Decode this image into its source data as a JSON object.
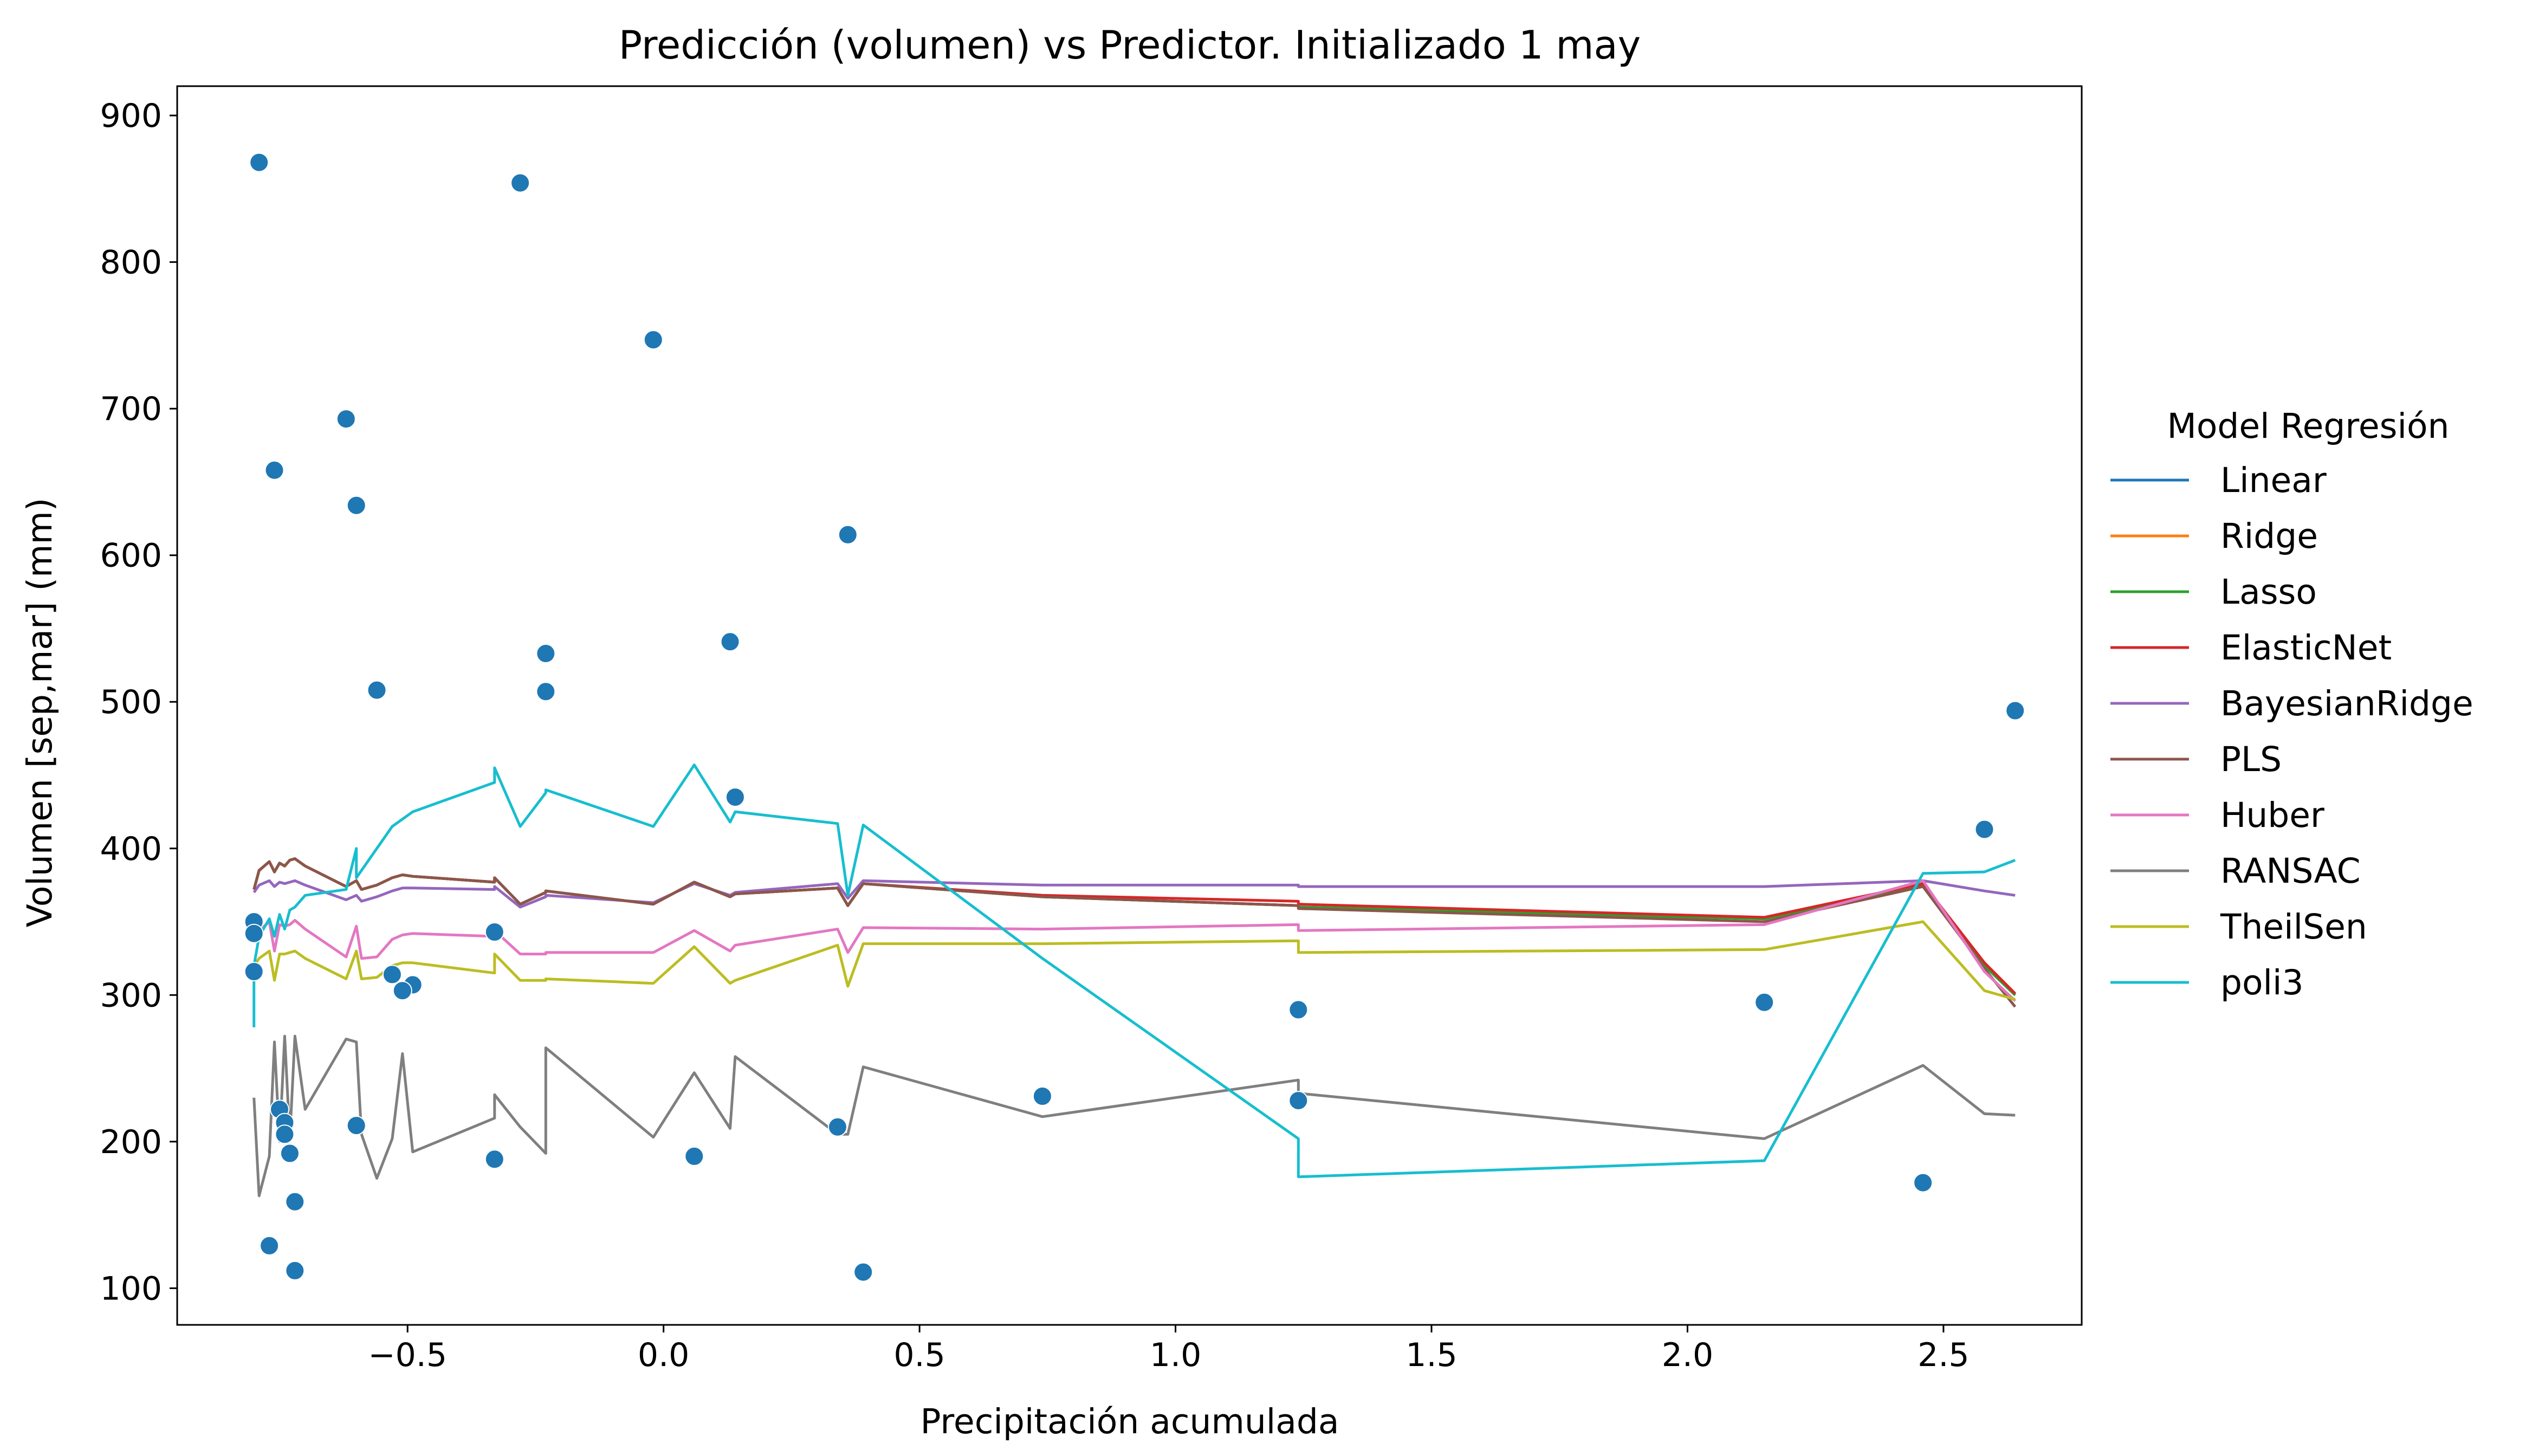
{
  "chart_data": {
    "type": "line",
    "title": "Predicción (volumen) vs Predictor. Initializado 1 may",
    "xlabel": "Precipitación acumulada",
    "ylabel": "Volumen  [sep,mar]  (mm)",
    "xlim": [
      -0.95,
      2.77
    ],
    "ylim": [
      75,
      920
    ],
    "xticks": [
      -0.5,
      0.0,
      0.5,
      1.0,
      1.5,
      2.0,
      2.5
    ],
    "xtick_labels": [
      "−0.5",
      "0.0",
      "0.5",
      "1.0",
      "1.5",
      "2.0",
      "2.5"
    ],
    "yticks": [
      100,
      200,
      300,
      400,
      500,
      600,
      700,
      800,
      900
    ],
    "ytick_labels": [
      "100",
      "200",
      "300",
      "400",
      "500",
      "600",
      "700",
      "800",
      "900"
    ],
    "grid": false,
    "legend": {
      "title": "Model Regresión",
      "placement": "outside-right"
    },
    "observed": {
      "color": "#1f77b4",
      "points": [
        {
          "x": -0.79,
          "y": 868
        },
        {
          "x": -0.28,
          "y": 854
        },
        {
          "x": -0.02,
          "y": 747
        },
        {
          "x": -0.62,
          "y": 693
        },
        {
          "x": -0.76,
          "y": 658
        },
        {
          "x": -0.6,
          "y": 634
        },
        {
          "x": 0.36,
          "y": 614
        },
        {
          "x": 0.13,
          "y": 541
        },
        {
          "x": -0.23,
          "y": 533
        },
        {
          "x": -0.56,
          "y": 508
        },
        {
          "x": -0.23,
          "y": 507
        },
        {
          "x": 2.64,
          "y": 494
        },
        {
          "x": 0.14,
          "y": 435
        },
        {
          "x": 2.58,
          "y": 413
        },
        {
          "x": -0.8,
          "y": 350
        },
        {
          "x": -0.8,
          "y": 342
        },
        {
          "x": -0.33,
          "y": 343
        },
        {
          "x": -0.8,
          "y": 316
        },
        {
          "x": -0.53,
          "y": 314
        },
        {
          "x": -0.49,
          "y": 307
        },
        {
          "x": -0.51,
          "y": 303
        },
        {
          "x": 2.15,
          "y": 295
        },
        {
          "x": 1.24,
          "y": 290
        },
        {
          "x": 0.74,
          "y": 231
        },
        {
          "x": 1.24,
          "y": 228
        },
        {
          "x": -0.75,
          "y": 222
        },
        {
          "x": -0.74,
          "y": 213
        },
        {
          "x": -0.6,
          "y": 211
        },
        {
          "x": 0.34,
          "y": 210
        },
        {
          "x": -0.74,
          "y": 205
        },
        {
          "x": -0.73,
          "y": 192
        },
        {
          "x": 0.06,
          "y": 190
        },
        {
          "x": -0.33,
          "y": 188
        },
        {
          "x": 2.46,
          "y": 172
        },
        {
          "x": -0.72,
          "y": 159
        },
        {
          "x": -0.77,
          "y": 129
        },
        {
          "x": -0.72,
          "y": 112
        },
        {
          "x": 0.39,
          "y": 111
        }
      ]
    },
    "series": [
      {
        "name": "Linear",
        "color": "#1f77b4",
        "x": [
          -0.8,
          -0.79,
          -0.77,
          -0.76,
          -0.75,
          -0.74,
          -0.73,
          -0.72,
          -0.7,
          -0.62,
          -0.6,
          -0.59,
          -0.56,
          -0.53,
          -0.51,
          -0.49,
          -0.33,
          -0.33,
          -0.28,
          -0.23,
          -0.23,
          -0.02,
          0.06,
          0.13,
          0.14,
          0.34,
          0.36,
          0.39,
          0.74,
          1.24,
          1.24,
          2.15,
          2.46,
          2.58,
          2.64
        ],
        "y": [
          372,
          385,
          391,
          384,
          390,
          388,
          392,
          393,
          388,
          374,
          378,
          372,
          375,
          380,
          382,
          381,
          377,
          380,
          362,
          370,
          371,
          362,
          377,
          367,
          369,
          373,
          361,
          376,
          367,
          361,
          360,
          352,
          375,
          320,
          300
        ]
      },
      {
        "name": "Ridge",
        "color": "#ff7f0e",
        "x": [
          -0.8,
          -0.79,
          -0.77,
          -0.76,
          -0.75,
          -0.74,
          -0.73,
          -0.72,
          -0.7,
          -0.62,
          -0.6,
          -0.59,
          -0.56,
          -0.53,
          -0.51,
          -0.49,
          -0.33,
          -0.33,
          -0.28,
          -0.23,
          -0.23,
          -0.02,
          0.06,
          0.13,
          0.14,
          0.34,
          0.36,
          0.39,
          0.74,
          1.24,
          1.24,
          2.15,
          2.46,
          2.58,
          2.64
        ],
        "y": [
          372,
          385,
          391,
          384,
          390,
          388,
          392,
          393,
          388,
          374,
          378,
          372,
          375,
          380,
          382,
          381,
          377,
          380,
          362,
          370,
          371,
          362,
          377,
          367,
          369,
          373,
          361,
          376,
          367,
          361,
          360,
          352,
          375,
          320,
          300
        ]
      },
      {
        "name": "Lasso",
        "color": "#2ca02c",
        "x": [
          -0.8,
          -0.79,
          -0.77,
          -0.76,
          -0.75,
          -0.74,
          -0.73,
          -0.72,
          -0.7,
          -0.62,
          -0.6,
          -0.59,
          -0.56,
          -0.53,
          -0.51,
          -0.49,
          -0.33,
          -0.33,
          -0.28,
          -0.23,
          -0.23,
          -0.02,
          0.06,
          0.13,
          0.14,
          0.34,
          0.36,
          0.39,
          0.74,
          1.24,
          1.24,
          2.15,
          2.46,
          2.58,
          2.64
        ],
        "y": [
          372,
          385,
          391,
          384,
          390,
          388,
          392,
          393,
          388,
          374,
          378,
          372,
          375,
          380,
          382,
          381,
          377,
          380,
          362,
          370,
          371,
          362,
          377,
          367,
          369,
          373,
          361,
          376,
          367,
          361,
          360,
          352,
          375,
          320,
          300
        ]
      },
      {
        "name": "ElasticNet",
        "color": "#d62728",
        "x": [
          -0.8,
          -0.79,
          -0.77,
          -0.76,
          -0.75,
          -0.74,
          -0.73,
          -0.72,
          -0.7,
          -0.62,
          -0.6,
          -0.59,
          -0.56,
          -0.53,
          -0.51,
          -0.49,
          -0.33,
          -0.33,
          -0.28,
          -0.23,
          -0.23,
          -0.02,
          0.06,
          0.13,
          0.14,
          0.34,
          0.36,
          0.39,
          0.74,
          1.24,
          1.24,
          2.15,
          2.46,
          2.58,
          2.64
        ],
        "y": [
          372,
          385,
          391,
          384,
          390,
          388,
          392,
          393,
          388,
          374,
          378,
          372,
          375,
          380,
          382,
          381,
          377,
          380,
          362,
          370,
          371,
          362,
          377,
          367,
          369,
          373,
          361,
          376,
          368,
          364,
          362,
          353,
          376,
          322,
          301
        ]
      },
      {
        "name": "BayesianRidge",
        "color": "#9467bd",
        "x": [
          -0.8,
          -0.79,
          -0.77,
          -0.76,
          -0.75,
          -0.74,
          -0.73,
          -0.72,
          -0.7,
          -0.62,
          -0.6,
          -0.59,
          -0.56,
          -0.53,
          -0.51,
          -0.49,
          -0.33,
          -0.33,
          -0.28,
          -0.23,
          -0.23,
          -0.02,
          0.06,
          0.13,
          0.14,
          0.34,
          0.36,
          0.39,
          0.74,
          1.24,
          1.24,
          2.15,
          2.46,
          2.58,
          2.64
        ],
        "y": [
          370,
          375,
          378,
          374,
          377,
          376,
          377,
          378,
          375,
          365,
          368,
          364,
          367,
          371,
          373,
          373,
          372,
          374,
          360,
          367,
          368,
          363,
          376,
          368,
          370,
          376,
          366,
          378,
          375,
          375,
          374,
          374,
          378,
          371,
          368
        ]
      },
      {
        "name": "PLS",
        "color": "#8c564b",
        "x": [
          -0.8,
          -0.79,
          -0.77,
          -0.76,
          -0.75,
          -0.74,
          -0.73,
          -0.72,
          -0.7,
          -0.62,
          -0.6,
          -0.59,
          -0.56,
          -0.53,
          -0.51,
          -0.49,
          -0.33,
          -0.33,
          -0.28,
          -0.23,
          -0.23,
          -0.02,
          0.06,
          0.13,
          0.14,
          0.34,
          0.36,
          0.39,
          0.74,
          1.24,
          1.24,
          2.15,
          2.46,
          2.58,
          2.64
        ],
        "y": [
          372,
          385,
          391,
          384,
          390,
          388,
          392,
          393,
          388,
          374,
          378,
          372,
          375,
          380,
          382,
          381,
          377,
          380,
          362,
          370,
          371,
          362,
          377,
          367,
          369,
          373,
          361,
          376,
          367,
          361,
          359,
          350,
          374,
          318,
          292
        ]
      },
      {
        "name": "Huber",
        "color": "#e377c2",
        "x": [
          -0.8,
          -0.79,
          -0.77,
          -0.76,
          -0.75,
          -0.74,
          -0.73,
          -0.72,
          -0.7,
          -0.62,
          -0.6,
          -0.59,
          -0.56,
          -0.53,
          -0.51,
          -0.49,
          -0.33,
          -0.33,
          -0.28,
          -0.23,
          -0.23,
          -0.02,
          0.06,
          0.13,
          0.14,
          0.34,
          0.36,
          0.39,
          0.74,
          1.24,
          1.24,
          2.15,
          2.46,
          2.58,
          2.64
        ],
        "y": [
          338,
          344,
          350,
          330,
          348,
          347,
          348,
          351,
          345,
          326,
          347,
          325,
          326,
          338,
          341,
          342,
          340,
          344,
          328,
          328,
          329,
          329,
          344,
          330,
          334,
          345,
          329,
          346,
          345,
          348,
          344,
          348,
          378,
          316,
          296
        ]
      },
      {
        "name": "RANSAC",
        "color": "#7f7f7f",
        "x": [
          -0.8,
          -0.79,
          -0.77,
          -0.76,
          -0.75,
          -0.74,
          -0.73,
          -0.72,
          -0.7,
          -0.62,
          -0.6,
          -0.59,
          -0.56,
          -0.53,
          -0.51,
          -0.49,
          -0.33,
          -0.33,
          -0.28,
          -0.23,
          -0.23,
          -0.02,
          0.06,
          0.13,
          0.14,
          0.34,
          0.36,
          0.39,
          0.74,
          1.24,
          1.24,
          2.15,
          2.46,
          2.58,
          2.64
        ],
        "y": [
          230,
          163,
          190,
          268,
          200,
          272,
          202,
          272,
          222,
          270,
          268,
          205,
          175,
          202,
          260,
          193,
          216,
          232,
          210,
          192,
          264,
          203,
          247,
          209,
          258,
          205,
          205,
          251,
          217,
          242,
          233,
          202,
          252,
          219,
          218
        ]
      },
      {
        "name": "TheilSen",
        "color": "#bcbd22",
        "x": [
          -0.8,
          -0.79,
          -0.77,
          -0.76,
          -0.75,
          -0.74,
          -0.73,
          -0.72,
          -0.7,
          -0.62,
          -0.6,
          -0.59,
          -0.56,
          -0.53,
          -0.51,
          -0.49,
          -0.33,
          -0.33,
          -0.28,
          -0.23,
          -0.23,
          -0.02,
          0.06,
          0.13,
          0.14,
          0.34,
          0.36,
          0.39,
          0.74,
          1.24,
          1.24,
          2.15,
          2.46,
          2.58,
          2.64
        ],
        "y": [
          320,
          325,
          330,
          310,
          328,
          328,
          329,
          330,
          325,
          311,
          330,
          311,
          312,
          320,
          322,
          322,
          315,
          328,
          310,
          310,
          311,
          308,
          333,
          308,
          310,
          334,
          306,
          335,
          335,
          337,
          329,
          331,
          350,
          303,
          297
        ]
      },
      {
        "name": "poli3",
        "color": "#17becf",
        "x": [
          -0.8,
          -0.8,
          -0.79,
          -0.77,
          -0.76,
          -0.75,
          -0.74,
          -0.73,
          -0.72,
          -0.7,
          -0.62,
          -0.6,
          -0.6,
          -0.59,
          -0.56,
          -0.53,
          -0.51,
          -0.49,
          -0.33,
          -0.33,
          -0.28,
          -0.23,
          -0.23,
          -0.02,
          0.06,
          0.13,
          0.14,
          0.34,
          0.36,
          0.39,
          0.74,
          1.24,
          1.24,
          2.15,
          2.46,
          2.58,
          2.64
        ],
        "y": [
          278,
          320,
          340,
          352,
          340,
          355,
          345,
          358,
          360,
          368,
          372,
          400,
          380,
          385,
          400,
          415,
          420,
          425,
          445,
          455,
          415,
          438,
          440,
          415,
          457,
          418,
          425,
          417,
          368,
          416,
          325,
          202,
          176,
          187,
          383,
          384,
          392
        ]
      }
    ]
  }
}
